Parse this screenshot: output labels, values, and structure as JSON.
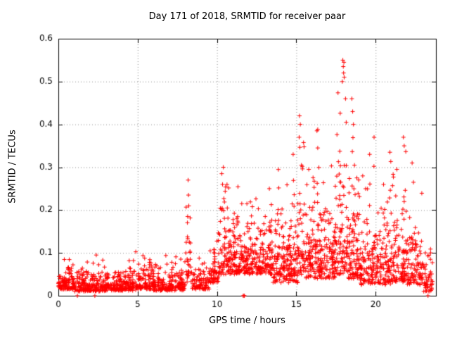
{
  "chart_data": {
    "type": "scatter",
    "title": "Day 171 of 2018, SRMTID for receiver paar",
    "xlabel": "GPS time / hours",
    "ylabel": "SRMTID / TECUs",
    "series_name": "SRMTID",
    "xlim": [
      0,
      23.8
    ],
    "ylim": [
      0,
      0.6
    ],
    "xticks": [
      0,
      5,
      10,
      15,
      20
    ],
    "xtick_labels": [
      "0",
      "5",
      "10",
      "15",
      "20"
    ],
    "yticks": [
      0,
      0.1,
      0.2,
      0.3,
      0.4,
      0.5,
      0.6
    ],
    "ytick_labels": [
      "0",
      "0.1",
      "0.2",
      "0.3",
      "0.4",
      "0.5",
      "0.6"
    ],
    "grid": true,
    "grid_style": "dotted",
    "legend_position": "none",
    "marker": "+",
    "marker_color": "#ff0000",
    "axis_color": "#000000",
    "grid_color": "#8a8a8a",
    "scatter_envelope": [
      {
        "x0": 0.0,
        "x1": 1.0,
        "n": 110,
        "y_base": 0.015,
        "y_scale": 0.02,
        "y_max": 0.1
      },
      {
        "x0": 1.0,
        "x1": 2.0,
        "n": 100,
        "y_base": 0.01,
        "y_scale": 0.018,
        "y_max": 0.12
      },
      {
        "x0": 2.0,
        "x1": 3.0,
        "n": 100,
        "y_base": 0.01,
        "y_scale": 0.016,
        "y_max": 0.1
      },
      {
        "x0": 3.0,
        "x1": 4.0,
        "n": 100,
        "y_base": 0.012,
        "y_scale": 0.02,
        "y_max": 0.14
      },
      {
        "x0": 4.0,
        "x1": 5.0,
        "n": 100,
        "y_base": 0.012,
        "y_scale": 0.02,
        "y_max": 0.12
      },
      {
        "x0": 5.0,
        "x1": 6.0,
        "n": 95,
        "y_base": 0.015,
        "y_scale": 0.022,
        "y_max": 0.13
      },
      {
        "x0": 6.0,
        "x1": 7.0,
        "n": 95,
        "y_base": 0.012,
        "y_scale": 0.018,
        "y_max": 0.11
      },
      {
        "x0": 7.0,
        "x1": 8.0,
        "n": 95,
        "y_base": 0.012,
        "y_scale": 0.02,
        "y_max": 0.12
      },
      {
        "x0": 8.0,
        "x1": 8.4,
        "n": 30,
        "y_base": 0.03,
        "y_scale": 0.06,
        "y_max": 0.27
      },
      {
        "x0": 8.4,
        "x1": 9.5,
        "n": 90,
        "y_base": 0.015,
        "y_scale": 0.02,
        "y_max": 0.1
      },
      {
        "x0": 9.5,
        "x1": 10.2,
        "n": 70,
        "y_base": 0.03,
        "y_scale": 0.03,
        "y_max": 0.15
      },
      {
        "x0": 10.2,
        "x1": 10.6,
        "n": 40,
        "y_base": 0.05,
        "y_scale": 0.07,
        "y_max": 0.3
      },
      {
        "x0": 10.6,
        "x1": 11.5,
        "n": 110,
        "y_base": 0.05,
        "y_scale": 0.05,
        "y_max": 0.3
      },
      {
        "x0": 11.5,
        "x1": 12.5,
        "n": 110,
        "y_base": 0.05,
        "y_scale": 0.045,
        "y_max": 0.25
      },
      {
        "x0": 12.5,
        "x1": 13.5,
        "n": 110,
        "y_base": 0.05,
        "y_scale": 0.05,
        "y_max": 0.26
      },
      {
        "x0": 13.5,
        "x1": 14.5,
        "n": 110,
        "y_base": 0.03,
        "y_scale": 0.05,
        "y_max": 0.3
      },
      {
        "x0": 14.5,
        "x1": 15.1,
        "n": 80,
        "y_base": 0.03,
        "y_scale": 0.06,
        "y_max": 0.34
      },
      {
        "x0": 15.1,
        "x1": 15.5,
        "n": 50,
        "y_base": 0.05,
        "y_scale": 0.09,
        "y_max": 0.44
      },
      {
        "x0": 15.5,
        "x1": 16.5,
        "n": 120,
        "y_base": 0.04,
        "y_scale": 0.07,
        "y_max": 0.39
      },
      {
        "x0": 16.5,
        "x1": 17.5,
        "n": 120,
        "y_base": 0.04,
        "y_scale": 0.06,
        "y_max": 0.31
      },
      {
        "x0": 17.5,
        "x1": 18.25,
        "n": 90,
        "y_base": 0.05,
        "y_scale": 0.1,
        "y_max": 0.55
      },
      {
        "x0": 18.25,
        "x1": 19.0,
        "n": 100,
        "y_base": 0.04,
        "y_scale": 0.08,
        "y_max": 0.46
      },
      {
        "x0": 19.0,
        "x1": 20.0,
        "n": 110,
        "y_base": 0.025,
        "y_scale": 0.06,
        "y_max": 0.37
      },
      {
        "x0": 20.0,
        "x1": 21.0,
        "n": 110,
        "y_base": 0.025,
        "y_scale": 0.06,
        "y_max": 0.34
      },
      {
        "x0": 21.0,
        "x1": 22.0,
        "n": 110,
        "y_base": 0.03,
        "y_scale": 0.06,
        "y_max": 0.37
      },
      {
        "x0": 22.0,
        "x1": 23.0,
        "n": 100,
        "y_base": 0.025,
        "y_scale": 0.05,
        "y_max": 0.32
      },
      {
        "x0": 23.0,
        "x1": 23.6,
        "n": 50,
        "y_base": 0.01,
        "y_scale": 0.03,
        "y_max": 0.12
      }
    ],
    "outlier_points": [
      [
        1.2,
        0.0
      ],
      [
        2.3,
        0.0
      ],
      [
        11.65,
        0.0
      ],
      [
        11.7,
        0.0
      ],
      [
        11.73,
        0.0
      ],
      [
        23.3,
        0.0
      ],
      [
        8.15,
        0.185
      ],
      [
        8.18,
        0.27
      ],
      [
        8.2,
        0.235
      ],
      [
        8.22,
        0.21
      ],
      [
        10.3,
        0.285
      ],
      [
        10.35,
        0.26
      ],
      [
        10.4,
        0.3
      ],
      [
        13.3,
        0.25
      ],
      [
        14.8,
        0.33
      ],
      [
        15.2,
        0.42
      ],
      [
        15.25,
        0.4
      ],
      [
        15.18,
        0.37
      ],
      [
        16.3,
        0.385
      ],
      [
        16.35,
        0.345
      ],
      [
        17.9,
        0.5
      ],
      [
        17.93,
        0.55
      ],
      [
        17.96,
        0.535
      ],
      [
        17.98,
        0.52
      ],
      [
        18.0,
        0.545
      ],
      [
        18.02,
        0.51
      ],
      [
        18.1,
        0.46
      ],
      [
        18.5,
        0.46
      ],
      [
        18.55,
        0.43
      ],
      [
        18.6,
        0.4
      ],
      [
        19.9,
        0.37
      ],
      [
        20.9,
        0.335
      ],
      [
        21.75,
        0.37
      ],
      [
        21.8,
        0.35
      ],
      [
        22.3,
        0.31
      ]
    ]
  }
}
